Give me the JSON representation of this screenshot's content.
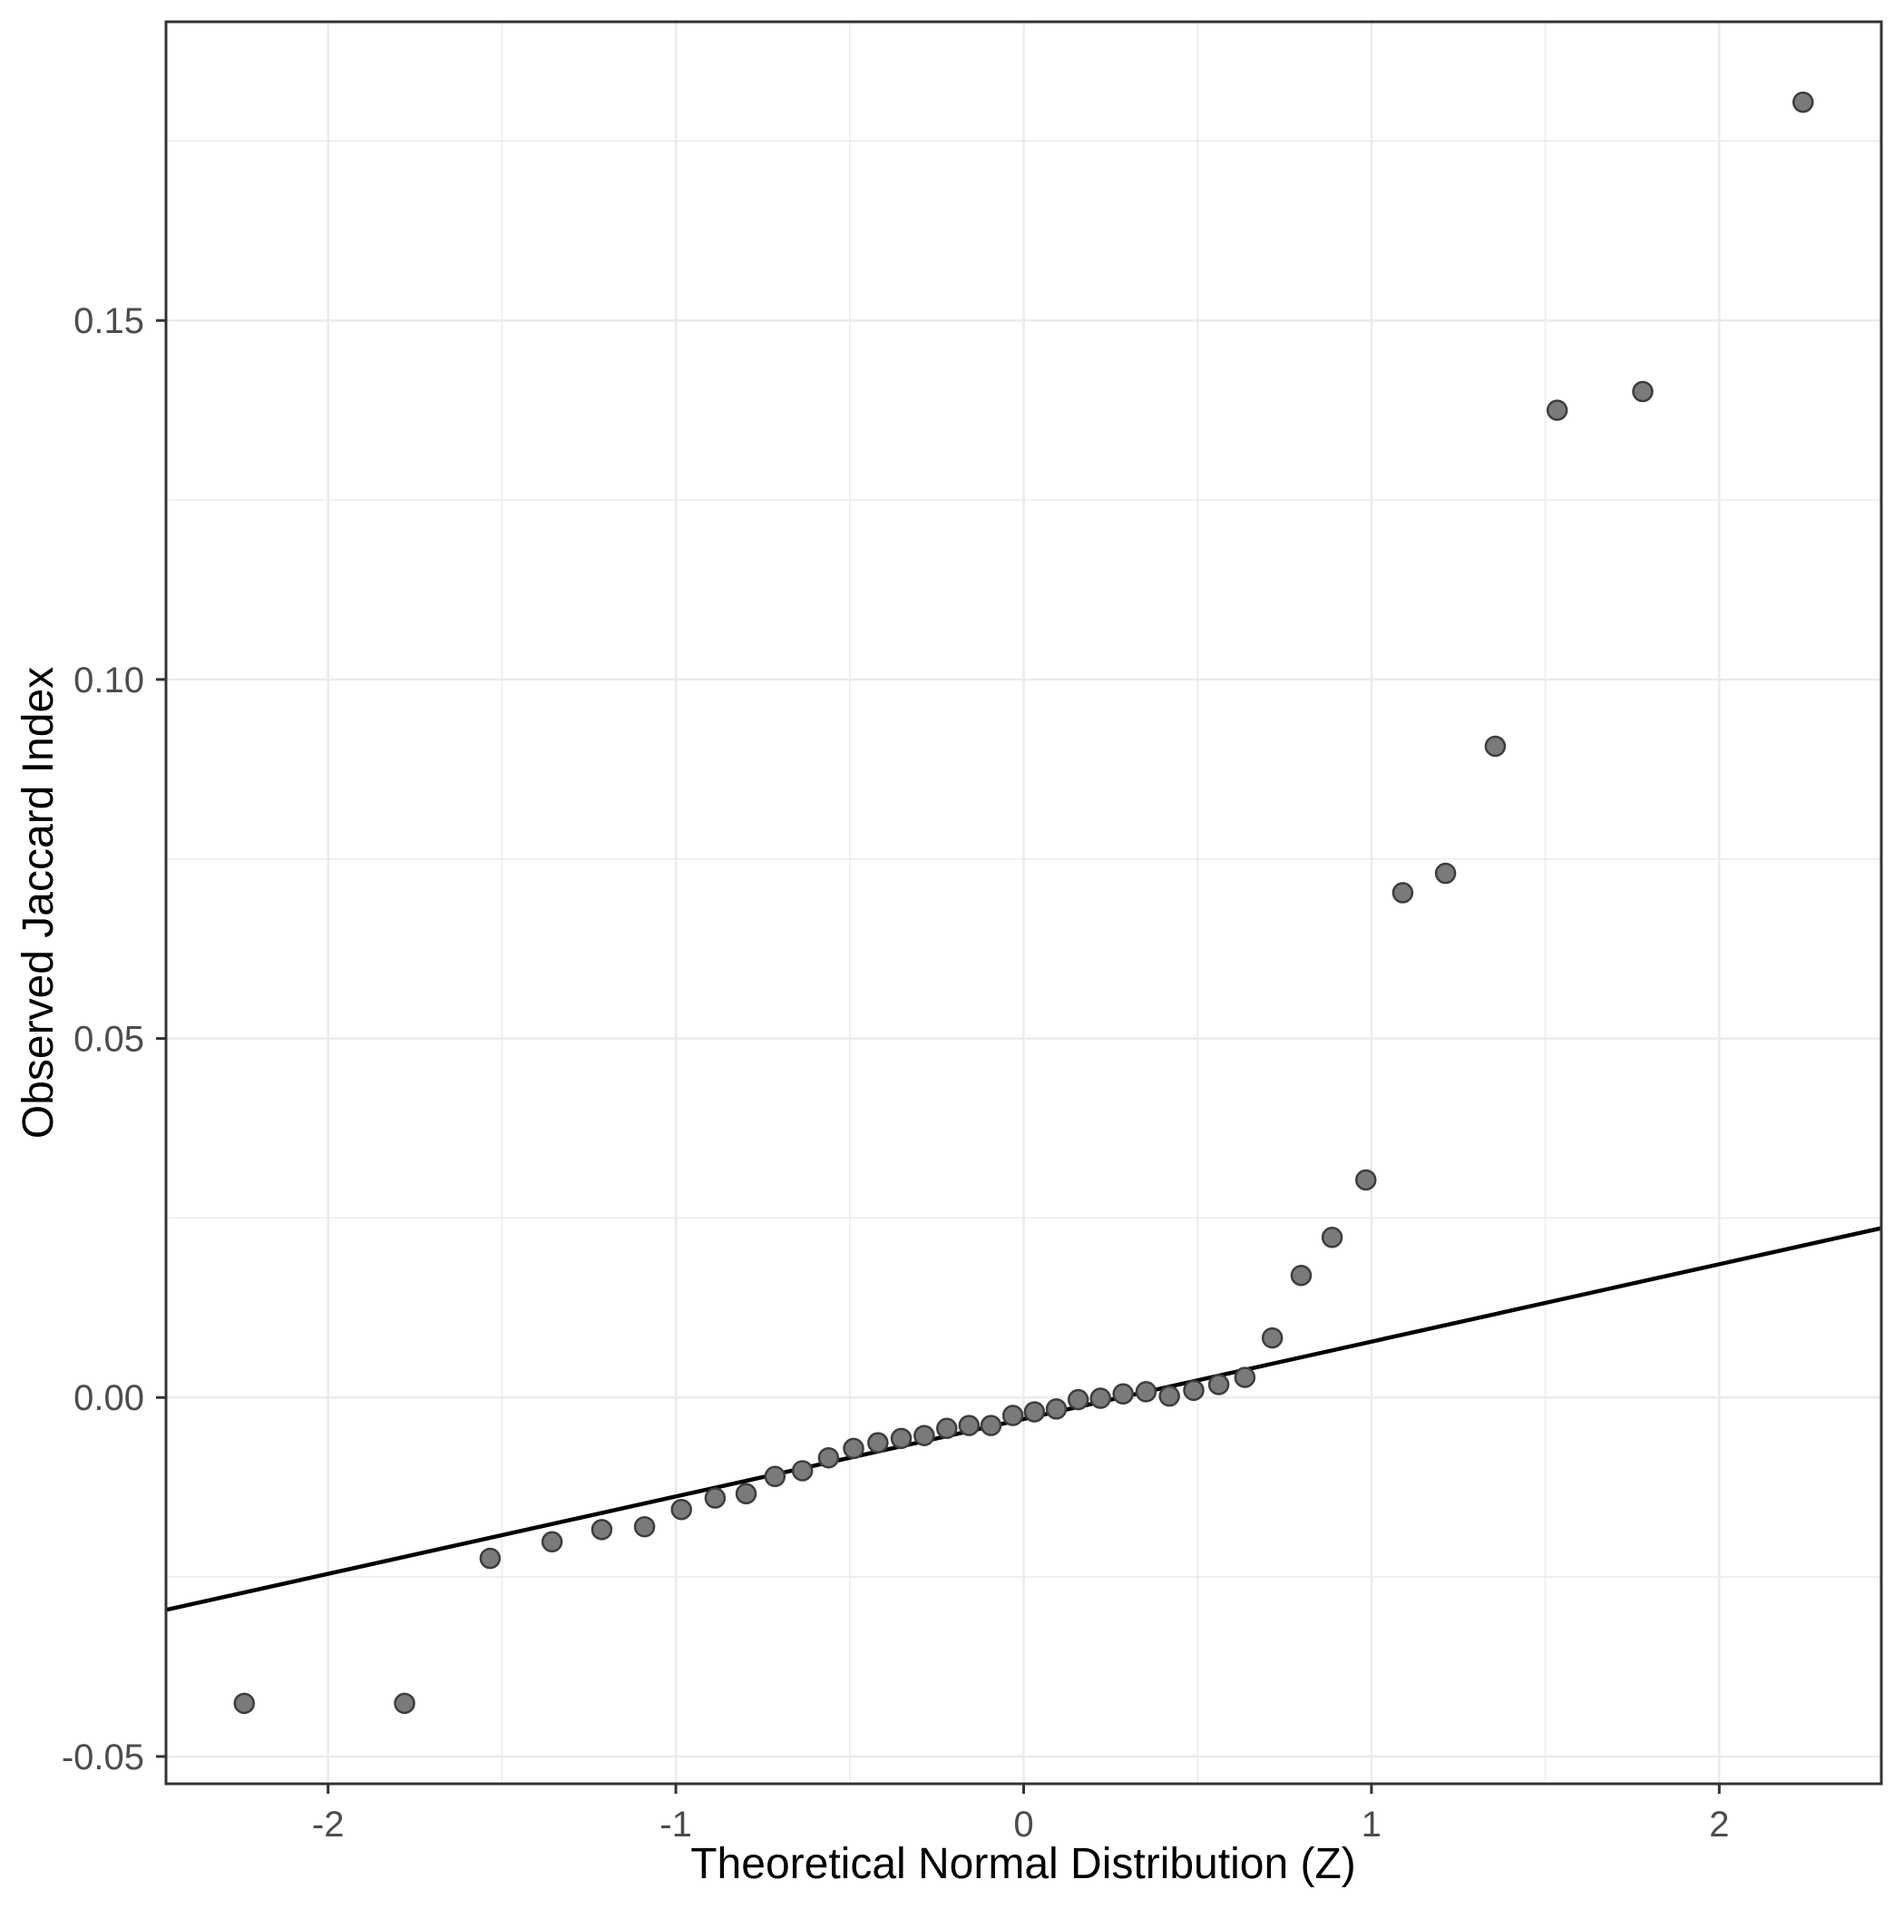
{
  "chart_data": {
    "type": "scatter",
    "title": "",
    "xlabel": "Theoretical Normal Distribution (Z)",
    "ylabel": "Observed Jaccard Index",
    "xlim": [
      -2.466,
      2.466
    ],
    "ylim": [
      -0.0538,
      0.1916
    ],
    "grid": true,
    "legend_position": "none",
    "x_ticks": [
      -2,
      -1,
      0,
      1,
      2
    ],
    "x_tick_labels": [
      "-2",
      "-1",
      "0",
      "1",
      "2"
    ],
    "y_ticks": [
      -0.05,
      0.0,
      0.05,
      0.1,
      0.15
    ],
    "y_tick_labels": [
      "-0.05",
      "0.00",
      "0.05",
      "0.10",
      "0.15"
    ],
    "x_minor_ticks": [
      -1.5,
      -0.5,
      0.5,
      1.5
    ],
    "y_minor_ticks": [
      -0.025,
      0.025,
      0.075,
      0.125,
      0.175
    ],
    "points": [
      [
        -2.241,
        -0.0426
      ],
      [
        -1.78,
        -0.0426
      ],
      [
        -1.534,
        -0.0224
      ],
      [
        -1.356,
        -0.0201
      ],
      [
        -1.213,
        -0.0184
      ],
      [
        -1.09,
        -0.018
      ],
      [
        -0.984,
        -0.0156
      ],
      [
        -0.887,
        -0.014
      ],
      [
        -0.798,
        -0.0134
      ],
      [
        -0.715,
        -0.011
      ],
      [
        -0.636,
        -0.0102
      ],
      [
        -0.561,
        -0.0084
      ],
      [
        -0.489,
        -0.0071
      ],
      [
        -0.419,
        -0.0063
      ],
      [
        -0.352,
        -0.0057
      ],
      [
        -0.286,
        -0.0053
      ],
      [
        -0.221,
        -0.0043
      ],
      [
        -0.157,
        -0.0039
      ],
      [
        -0.094,
        -0.0039
      ],
      [
        -0.031,
        -0.0025
      ],
      [
        0.031,
        -0.002
      ],
      [
        0.094,
        -0.0016
      ],
      [
        0.157,
        -0.0003
      ],
      [
        0.221,
        -0.0001
      ],
      [
        0.286,
        0.0005
      ],
      [
        0.352,
        0.0008
      ],
      [
        0.419,
        0.0002
      ],
      [
        0.489,
        0.001
      ],
      [
        0.561,
        0.0018
      ],
      [
        0.636,
        0.0028
      ],
      [
        0.715,
        0.0083
      ],
      [
        0.798,
        0.017
      ],
      [
        0.887,
        0.0223
      ],
      [
        0.984,
        0.0303
      ],
      [
        1.09,
        0.0703
      ],
      [
        1.213,
        0.073
      ],
      [
        1.356,
        0.0907
      ],
      [
        1.534,
        0.1375
      ],
      [
        1.78,
        0.1401
      ],
      [
        2.241,
        0.1804
      ]
    ],
    "reference_line": {
      "intercept": -0.003,
      "slope": 0.01078
    }
  },
  "style": {
    "background": "#ffffff",
    "grid_color": "#ebebeb",
    "panel_border_color": "#333333",
    "tick_color": "#333333",
    "tick_label_color": "#4d4d4d",
    "axis_title_color": "#000000",
    "line_color": "#000000",
    "point_fill": "#7a7a7a",
    "point_stroke": "#3d3d3d"
  }
}
